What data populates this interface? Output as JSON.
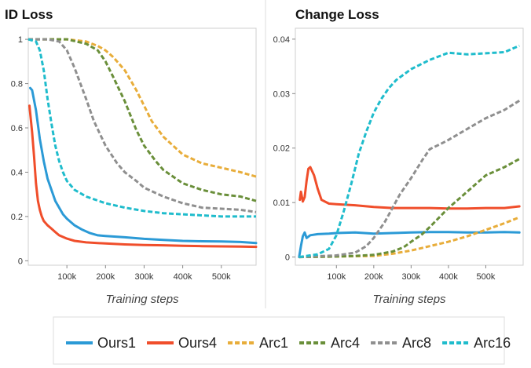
{
  "chart_data": [
    {
      "type": "line",
      "title": "ID Loss",
      "xlabel": "Training steps",
      "ylabel": "",
      "xlim": [
        0,
        590000
      ],
      "ylim": [
        -0.02,
        1.05
      ],
      "xticks": [
        100000,
        200000,
        300000,
        400000,
        500000
      ],
      "xtick_labels": [
        "100k",
        "200k",
        "300k",
        "400k",
        "500k"
      ],
      "yticks": [
        0,
        0.2,
        0.4,
        0.6,
        0.8,
        1
      ],
      "ytick_labels": [
        "0",
        "0.2",
        "0.4",
        "0.6",
        "0.8",
        "1"
      ],
      "grid": false,
      "series": [
        {
          "name": "Ours1",
          "color": "#2b9ad6",
          "dash": "solid",
          "x": [
            5000,
            10000,
            20000,
            30000,
            40000,
            50000,
            60000,
            70000,
            80000,
            90000,
            100000,
            120000,
            140000,
            160000,
            180000,
            200000,
            250000,
            300000,
            350000,
            400000,
            450000,
            500000,
            550000,
            590000
          ],
          "y": [
            0.78,
            0.77,
            0.68,
            0.55,
            0.45,
            0.37,
            0.32,
            0.27,
            0.24,
            0.21,
            0.19,
            0.16,
            0.14,
            0.125,
            0.115,
            0.112,
            0.106,
            0.099,
            0.094,
            0.09,
            0.088,
            0.087,
            0.085,
            0.08
          ]
        },
        {
          "name": "Ours4",
          "color": "#f04e2b",
          "dash": "solid",
          "x": [
            3000,
            10000,
            15000,
            20000,
            25000,
            30000,
            35000,
            40000,
            50000,
            60000,
            70000,
            80000,
            100000,
            120000,
            150000,
            200000,
            250000,
            300000,
            350000,
            400000,
            450000,
            500000,
            550000,
            590000
          ],
          "y": [
            0.7,
            0.58,
            0.47,
            0.35,
            0.27,
            0.23,
            0.2,
            0.18,
            0.16,
            0.145,
            0.13,
            0.115,
            0.1,
            0.09,
            0.083,
            0.078,
            0.074,
            0.071,
            0.07,
            0.068,
            0.066,
            0.065,
            0.064,
            0.063
          ]
        },
        {
          "name": "Arc1",
          "color": "#e8ad3a",
          "dash": "dashed",
          "x": [
            0,
            50000,
            100000,
            150000,
            180000,
            200000,
            220000,
            250000,
            280000,
            300000,
            320000,
            350000,
            400000,
            450000,
            500000,
            550000,
            590000
          ],
          "y": [
            1.0,
            1.0,
            1.0,
            0.99,
            0.97,
            0.95,
            0.92,
            0.86,
            0.77,
            0.7,
            0.63,
            0.56,
            0.48,
            0.44,
            0.42,
            0.4,
            0.38
          ]
        },
        {
          "name": "Arc4",
          "color": "#6a8f3a",
          "dash": "dashed",
          "x": [
            0,
            50000,
            100000,
            150000,
            180000,
            200000,
            220000,
            250000,
            280000,
            300000,
            330000,
            350000,
            400000,
            450000,
            500000,
            550000,
            590000
          ],
          "y": [
            1.0,
            1.0,
            1.0,
            0.98,
            0.95,
            0.9,
            0.83,
            0.72,
            0.59,
            0.52,
            0.45,
            0.41,
            0.35,
            0.32,
            0.3,
            0.29,
            0.27
          ]
        },
        {
          "name": "Arc8",
          "color": "#8f8f8f",
          "dash": "dashed",
          "x": [
            0,
            50000,
            80000,
            100000,
            120000,
            150000,
            170000,
            200000,
            230000,
            250000,
            280000,
            300000,
            350000,
            400000,
            450000,
            500000,
            550000,
            590000
          ],
          "y": [
            1.0,
            1.0,
            0.99,
            0.95,
            0.87,
            0.73,
            0.63,
            0.52,
            0.44,
            0.4,
            0.36,
            0.33,
            0.29,
            0.26,
            0.24,
            0.235,
            0.23,
            0.22
          ]
        },
        {
          "name": "Arc16",
          "color": "#1fbccc",
          "dash": "dashed",
          "x": [
            0,
            20000,
            30000,
            40000,
            50000,
            60000,
            70000,
            80000,
            90000,
            100000,
            120000,
            150000,
            200000,
            250000,
            300000,
            350000,
            400000,
            450000,
            500000,
            550000,
            590000
          ],
          "y": [
            1.0,
            0.99,
            0.95,
            0.86,
            0.73,
            0.62,
            0.52,
            0.45,
            0.4,
            0.36,
            0.32,
            0.29,
            0.26,
            0.24,
            0.225,
            0.215,
            0.21,
            0.205,
            0.2,
            0.2,
            0.2
          ]
        }
      ]
    },
    {
      "type": "line",
      "title": "Change Loss",
      "xlabel": "Training steps",
      "ylabel": "",
      "xlim": [
        -10000,
        600000
      ],
      "ylim": [
        -0.0015,
        0.042
      ],
      "xticks": [
        100000,
        200000,
        300000,
        400000,
        500000
      ],
      "xtick_labels": [
        "100k",
        "200k",
        "300k",
        "400k",
        "500k"
      ],
      "yticks": [
        0,
        0.01,
        0.02,
        0.03,
        0.04
      ],
      "ytick_labels": [
        "0",
        "0.01",
        "0.02",
        "0.03",
        "0.04"
      ],
      "grid": false,
      "series": [
        {
          "name": "Ours1",
          "color": "#2b9ad6",
          "dash": "solid",
          "x": [
            0,
            5000,
            10000,
            15000,
            20000,
            30000,
            50000,
            80000,
            100000,
            150000,
            200000,
            250000,
            300000,
            350000,
            400000,
            450000,
            500000,
            550000,
            590000
          ],
          "y": [
            0,
            0.002,
            0.0038,
            0.0045,
            0.0035,
            0.004,
            0.0042,
            0.0043,
            0.0044,
            0.0045,
            0.0043,
            0.0044,
            0.0045,
            0.0046,
            0.0046,
            0.0045,
            0.0045,
            0.0046,
            0.0045
          ]
        },
        {
          "name": "Ours4",
          "color": "#f04e2b",
          "dash": "solid",
          "x": [
            2000,
            5000,
            10000,
            15000,
            20000,
            25000,
            30000,
            40000,
            50000,
            60000,
            80000,
            100000,
            150000,
            200000,
            250000,
            300000,
            350000,
            400000,
            450000,
            500000,
            550000,
            590000
          ],
          "y": [
            0.0105,
            0.012,
            0.0102,
            0.011,
            0.014,
            0.0162,
            0.0165,
            0.015,
            0.0125,
            0.0105,
            0.0098,
            0.0097,
            0.0095,
            0.0092,
            0.009,
            0.009,
            0.009,
            0.0089,
            0.0089,
            0.009,
            0.009,
            0.0093
          ]
        },
        {
          "name": "Arc1",
          "color": "#e8ad3a",
          "dash": "dashed",
          "x": [
            0,
            100000,
            200000,
            250000,
            300000,
            350000,
            400000,
            450000,
            500000,
            550000,
            590000
          ],
          "y": [
            0,
            0.0001,
            0.0002,
            0.0006,
            0.0012,
            0.002,
            0.0028,
            0.0038,
            0.005,
            0.0062,
            0.0073
          ]
        },
        {
          "name": "Arc4",
          "color": "#6a8f3a",
          "dash": "dashed",
          "x": [
            0,
            100000,
            150000,
            200000,
            250000,
            280000,
            300000,
            330000,
            350000,
            400000,
            450000,
            500000,
            550000,
            590000
          ],
          "y": [
            0,
            0.0001,
            0.0002,
            0.0004,
            0.001,
            0.0018,
            0.0028,
            0.0042,
            0.0055,
            0.009,
            0.012,
            0.015,
            0.0165,
            0.018
          ]
        },
        {
          "name": "Arc8",
          "color": "#8f8f8f",
          "dash": "dashed",
          "x": [
            0,
            100000,
            150000,
            180000,
            200000,
            230000,
            250000,
            270000,
            300000,
            330000,
            350000,
            380000,
            400000,
            450000,
            500000,
            550000,
            590000
          ],
          "y": [
            0,
            0.0003,
            0.0008,
            0.002,
            0.0035,
            0.0065,
            0.009,
            0.0115,
            0.0145,
            0.0178,
            0.0198,
            0.0208,
            0.0215,
            0.0235,
            0.0255,
            0.027,
            0.0287
          ]
        },
        {
          "name": "Arc16",
          "color": "#1fbccc",
          "dash": "dashed",
          "x": [
            0,
            50000,
            80000,
            100000,
            120000,
            140000,
            160000,
            180000,
            200000,
            220000,
            240000,
            260000,
            300000,
            350000,
            400000,
            450000,
            500000,
            550000,
            590000
          ],
          "y": [
            0,
            0.0005,
            0.0015,
            0.004,
            0.0085,
            0.0135,
            0.019,
            0.023,
            0.0265,
            0.029,
            0.031,
            0.0325,
            0.0345,
            0.0362,
            0.0375,
            0.0372,
            0.0374,
            0.0376,
            0.0388
          ]
        }
      ]
    }
  ],
  "legend": {
    "placement": "bottom",
    "entries": [
      {
        "label": "Ours1",
        "color": "#2b9ad6",
        "dash": "solid"
      },
      {
        "label": "Ours4",
        "color": "#f04e2b",
        "dash": "solid"
      },
      {
        "label": "Arc1",
        "color": "#e8ad3a",
        "dash": "dashed"
      },
      {
        "label": "Arc4",
        "color": "#6a8f3a",
        "dash": "dashed"
      },
      {
        "label": "Arc8",
        "color": "#8f8f8f",
        "dash": "dashed"
      },
      {
        "label": "Arc16",
        "color": "#1fbccc",
        "dash": "dashed"
      }
    ]
  }
}
